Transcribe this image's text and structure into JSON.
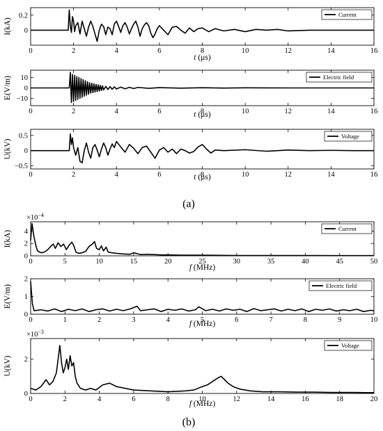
{
  "panel_labels": {
    "a": "(a)",
    "b": "(b)"
  },
  "chart_data": [
    {
      "id": "a1",
      "type": "line",
      "title": "",
      "xlabel_var": "t",
      "xlabel_unit": "(μs)",
      "ylabel": "I(kA)",
      "xlim": [
        0,
        16
      ],
      "ylim": [
        -0.2,
        0.3
      ],
      "xticks": [
        0,
        2,
        4,
        6,
        8,
        10,
        12,
        14,
        16
      ],
      "yticks": [
        0,
        0.2
      ],
      "legend": "top-right",
      "series": [
        {
          "name": "Current",
          "x": [
            0,
            1.75,
            1.8,
            1.85,
            1.9,
            1.95,
            2.0,
            2.05,
            2.1,
            2.2,
            2.3,
            2.4,
            2.5,
            2.6,
            2.7,
            2.8,
            2.9,
            3.0,
            3.1,
            3.2,
            3.3,
            3.4,
            3.5,
            3.6,
            3.7,
            3.8,
            3.9,
            4.0,
            4.1,
            4.2,
            4.3,
            4.4,
            4.5,
            4.6,
            4.7,
            4.8,
            4.9,
            5.0,
            5.1,
            5.2,
            5.3,
            5.4,
            5.5,
            5.6,
            5.7,
            5.8,
            5.9,
            6.0,
            6.2,
            6.4,
            6.6,
            6.8,
            7.0,
            7.2,
            7.4,
            7.6,
            7.8,
            8.0,
            8.3,
            8.6,
            9.0,
            9.5,
            10.0,
            10.5,
            11.0,
            11.5,
            12.0,
            13.0,
            14.0,
            15.0,
            16.0
          ],
          "y": [
            0,
            0,
            0.27,
            0.05,
            -0.03,
            0.18,
            0.12,
            -0.02,
            0.06,
            0.1,
            -0.05,
            0.12,
            0.02,
            -0.08,
            0.04,
            0.12,
            0.05,
            -0.05,
            -0.15,
            0.0,
            0.08,
            0.05,
            -0.06,
            0.04,
            0.02,
            -0.06,
            0.08,
            0.12,
            0.05,
            -0.03,
            0.06,
            0.1,
            0.04,
            -0.05,
            0.02,
            0.08,
            0.12,
            0.04,
            -0.08,
            0.02,
            0.07,
            0.1,
            0.06,
            -0.04,
            -0.1,
            -0.05,
            0.02,
            0.06,
            0.0,
            -0.06,
            0.04,
            0.05,
            0.0,
            -0.04,
            0.03,
            -0.02,
            0.02,
            0.03,
            -0.02,
            0.02,
            -0.01,
            0.01,
            -0.02,
            0.01,
            0.0,
            0.01,
            -0.01,
            0.0,
            0.0,
            0.0,
            0.0
          ]
        }
      ]
    },
    {
      "id": "a2",
      "type": "line",
      "title": "",
      "xlabel_var": "t",
      "xlabel_unit": "(μs)",
      "ylabel": "E(V/m)",
      "xlim": [
        0,
        16
      ],
      "ylim": [
        -17,
        17
      ],
      "xticks": [
        0,
        2,
        4,
        6,
        8,
        10,
        12,
        14,
        16
      ],
      "yticks": [
        -10,
        0,
        10
      ],
      "legend": "top-right",
      "series": [
        {
          "name": "Electric field",
          "x": [
            0,
            1.8,
            1.85,
            1.9,
            1.95,
            2.0,
            2.05,
            2.1,
            2.15,
            2.2,
            2.25,
            2.3,
            2.35,
            2.4,
            2.45,
            2.5,
            2.55,
            2.6,
            2.65,
            2.7,
            2.75,
            2.8,
            2.85,
            2.9,
            2.95,
            3.0,
            3.05,
            3.1,
            3.15,
            3.2,
            3.25,
            3.3,
            3.35,
            3.4,
            3.5,
            3.6,
            3.7,
            3.8,
            3.9,
            4.0,
            4.2,
            4.4,
            4.6,
            4.8,
            5.0,
            5.5,
            6.0,
            7.0,
            8.0,
            9.0,
            10.0,
            12.0,
            14.0,
            16.0
          ],
          "y": [
            0,
            0,
            15,
            -14,
            13,
            -13,
            12,
            -12,
            11,
            -11,
            10,
            -10,
            9,
            -9,
            8,
            -8,
            7,
            -7,
            6,
            -6,
            5,
            -5,
            4.5,
            -4.5,
            4,
            -4,
            3.5,
            -3.5,
            3,
            -3,
            2.5,
            -2.5,
            2,
            -2,
            1.5,
            -1.5,
            1.2,
            -1.2,
            1,
            -1,
            0.8,
            -0.8,
            0.6,
            -0.6,
            0.5,
            -0.4,
            0.3,
            -0.2,
            0.2,
            -0.1,
            0.1,
            0,
            0,
            0
          ]
        }
      ]
    },
    {
      "id": "a3",
      "type": "line",
      "title": "",
      "xlabel_var": "t",
      "xlabel_unit": "(μs)",
      "ylabel": "U(kV)",
      "xlim": [
        0,
        16
      ],
      "ylim": [
        -0.6,
        0.7
      ],
      "xticks": [
        0,
        2,
        4,
        6,
        8,
        10,
        12,
        14,
        16
      ],
      "yticks": [
        -0.5,
        0,
        0.5
      ],
      "legend": "top-right",
      "series": [
        {
          "name": "Voltage",
          "x": [
            0,
            1.8,
            1.85,
            1.9,
            1.95,
            2.0,
            2.1,
            2.2,
            2.3,
            2.4,
            2.5,
            2.6,
            2.7,
            2.8,
            2.9,
            3.0,
            3.1,
            3.2,
            3.3,
            3.4,
            3.5,
            3.6,
            3.7,
            3.8,
            3.9,
            4.0,
            4.2,
            4.4,
            4.6,
            4.8,
            5.0,
            5.2,
            5.4,
            5.6,
            5.8,
            6.0,
            6.2,
            6.4,
            6.6,
            6.8,
            7.0,
            7.2,
            7.4,
            7.6,
            7.8,
            8.0,
            8.2,
            8.4,
            8.6,
            9.0,
            10.0,
            11.0,
            12.0,
            13.0,
            14.0,
            15.0,
            16.0
          ],
          "y": [
            0,
            0,
            0.55,
            0.2,
            0.42,
            0.1,
            -0.15,
            0.1,
            -0.35,
            -0.4,
            0.0,
            0.25,
            -0.05,
            -0.25,
            0.1,
            0.2,
            0.02,
            -0.2,
            0.05,
            0.25,
            0.1,
            -0.15,
            0.05,
            0.22,
            0.1,
            0.3,
            0.12,
            -0.05,
            0.2,
            0.08,
            -0.1,
            0.1,
            0.15,
            -0.05,
            -0.25,
            0.02,
            0.1,
            -0.05,
            0.05,
            -0.1,
            0.05,
            0.0,
            -0.08,
            -0.03,
            0.12,
            0.2,
            0.05,
            -0.08,
            0.02,
            0.0,
            0.03,
            -0.02,
            0.02,
            0.0,
            0.01,
            0.0,
            0.0
          ]
        }
      ]
    },
    {
      "id": "b1",
      "type": "line",
      "title": "",
      "xlabel_var": "f",
      "xlabel_unit": "(MHz)",
      "ylabel": "I(kA)",
      "scale_label": "×10",
      "scale_exp": "−4",
      "xlim": [
        0,
        50
      ],
      "ylim": [
        0,
        5.5
      ],
      "xticks": [
        0,
        5,
        10,
        15,
        20,
        25,
        30,
        35,
        40,
        45,
        50
      ],
      "yticks": [
        0,
        2,
        4
      ],
      "legend": "top-right",
      "series": [
        {
          "name": "Current",
          "x": [
            0,
            0.2,
            0.5,
            0.8,
            1.0,
            1.5,
            2.0,
            2.5,
            3.0,
            3.3,
            3.6,
            4.0,
            4.4,
            4.8,
            5.2,
            5.6,
            6.0,
            6.3,
            6.6,
            7.0,
            7.5,
            8.0,
            8.5,
            9.0,
            9.3,
            9.6,
            10.0,
            10.3,
            10.6,
            11.0,
            11.3,
            11.8,
            12.5,
            13.5,
            14.5,
            15.0,
            16.0,
            17.0,
            18.0,
            19.0,
            20.0,
            22.0,
            25.0,
            30.0,
            35.0,
            40.0,
            45.0,
            50.0
          ],
          "y": [
            2.5,
            5.2,
            3.0,
            1.5,
            0.8,
            0.5,
            0.6,
            1.0,
            1.6,
            1.9,
            1.2,
            2.1,
            1.5,
            1.9,
            1.0,
            1.7,
            2.2,
            1.6,
            0.6,
            0.4,
            0.5,
            0.7,
            1.5,
            1.9,
            2.3,
            1.2,
            1.0,
            1.6,
            0.8,
            1.4,
            0.6,
            0.5,
            0.4,
            0.3,
            0.25,
            0.5,
            0.2,
            0.25,
            0.2,
            0.15,
            0.15,
            0.1,
            0.1,
            0.05,
            0.05,
            0.05,
            0.03,
            0.03
          ]
        }
      ]
    },
    {
      "id": "b2",
      "type": "line",
      "title": "",
      "xlabel_var": "f",
      "xlabel_unit": "(MHz)",
      "ylabel": "E(V/m)",
      "xlim": [
        0,
        10
      ],
      "ylim": [
        0,
        2
      ],
      "xticks": [
        0,
        1,
        2,
        3,
        4,
        5,
        6,
        7,
        8,
        9,
        10
      ],
      "yticks": [
        0,
        1,
        2
      ],
      "legend": "top-right",
      "series": [
        {
          "name": "Electric field",
          "x": [
            0,
            0.05,
            0.1,
            0.3,
            0.5,
            0.7,
            0.9,
            1.1,
            1.3,
            1.5,
            1.7,
            1.9,
            2.1,
            2.3,
            2.5,
            2.7,
            2.9,
            3.1,
            3.2,
            3.4,
            3.6,
            3.8,
            4.0,
            4.2,
            4.4,
            4.6,
            4.8,
            4.9,
            5.1,
            5.3,
            5.5,
            5.7,
            5.9,
            6.1,
            6.3,
            6.5,
            6.7,
            6.9,
            7.1,
            7.3,
            7.5,
            7.7,
            7.9,
            8.1,
            8.3,
            8.5,
            8.7,
            8.9,
            9.1,
            9.3,
            9.5,
            9.7,
            9.9,
            10.0
          ],
          "y": [
            1.85,
            0.6,
            0.2,
            0.25,
            0.18,
            0.3,
            0.15,
            0.28,
            0.2,
            0.3,
            0.15,
            0.25,
            0.3,
            0.18,
            0.28,
            0.2,
            0.3,
            0.45,
            0.2,
            0.25,
            0.3,
            0.15,
            0.28,
            0.22,
            0.3,
            0.18,
            0.25,
            0.42,
            0.2,
            0.28,
            0.18,
            0.3,
            0.22,
            0.28,
            0.15,
            0.32,
            0.2,
            0.25,
            0.3,
            0.18,
            0.28,
            0.2,
            0.3,
            0.15,
            0.28,
            0.22,
            0.3,
            0.18,
            0.25,
            0.2,
            0.28,
            0.15,
            0.22,
            0.2
          ]
        }
      ]
    },
    {
      "id": "b3",
      "type": "line",
      "title": "",
      "xlabel_var": "f",
      "xlabel_unit": "(MHz)",
      "ylabel": "U(kV)",
      "scale_label": "×10",
      "scale_exp": "−3",
      "xlim": [
        0,
        20
      ],
      "ylim": [
        0,
        3.2
      ],
      "xticks": [
        0,
        2,
        4,
        6,
        8,
        10,
        12,
        14,
        16,
        18,
        20
      ],
      "yticks": [
        0,
        2
      ],
      "legend": "top-right",
      "series": [
        {
          "name": "Voltage",
          "x": [
            0,
            0.3,
            0.6,
            0.9,
            1.1,
            1.3,
            1.5,
            1.7,
            1.8,
            1.9,
            2.0,
            2.1,
            2.2,
            2.3,
            2.4,
            2.5,
            2.6,
            2.7,
            2.9,
            3.2,
            3.5,
            3.8,
            4.2,
            4.6,
            5.0,
            5.5,
            6.0,
            7.0,
            8.0,
            9.0,
            9.5,
            10.0,
            10.3,
            10.6,
            10.9,
            11.1,
            11.3,
            11.5,
            11.8,
            12.2,
            12.8,
            13.5,
            14.5,
            15.5,
            16.5,
            17.5,
            18.5,
            19.5,
            20.0
          ],
          "y": [
            0.3,
            0.2,
            0.4,
            0.8,
            0.5,
            0.7,
            1.2,
            2.8,
            1.8,
            1.2,
            1.5,
            2.0,
            1.4,
            2.2,
            1.6,
            1.8,
            1.0,
            0.6,
            0.3,
            0.2,
            0.3,
            0.2,
            0.5,
            0.6,
            0.4,
            0.3,
            0.2,
            0.15,
            0.1,
            0.15,
            0.2,
            0.4,
            0.5,
            0.7,
            0.9,
            1.0,
            0.8,
            0.6,
            0.4,
            0.25,
            0.15,
            0.1,
            0.1,
            0.08,
            0.08,
            0.06,
            0.06,
            0.05,
            0.05
          ]
        }
      ]
    }
  ]
}
